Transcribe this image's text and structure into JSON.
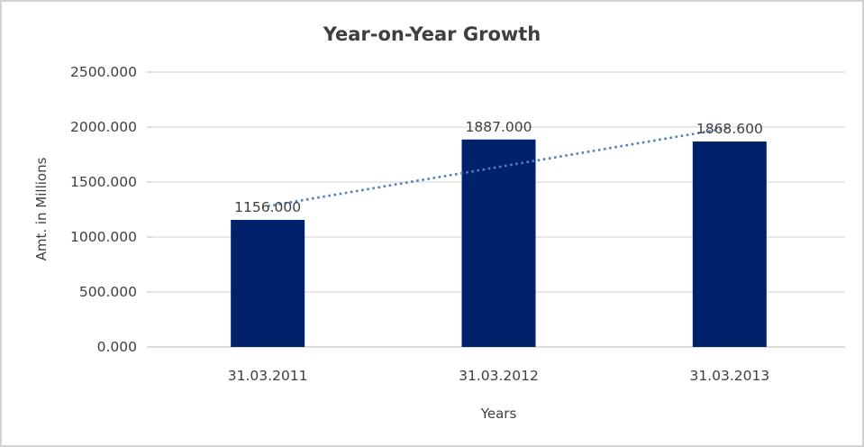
{
  "chart_data": {
    "type": "bar",
    "title": "Year-on-Year Growth",
    "xlabel": "Years",
    "ylabel": "Amt. in Millions",
    "categories": [
      "31.03.2011",
      "31.03.2012",
      "31.03.2013"
    ],
    "values": [
      1156.0,
      1887.0,
      1868.6
    ],
    "data_labels": [
      "1156.000",
      "1887.000",
      "1868.600"
    ],
    "y_tick_values": [
      0,
      500,
      1000,
      1500,
      2000,
      2500
    ],
    "y_tick_labels": [
      "0.000",
      "500.000",
      "1000.000",
      "1500.000",
      "2000.000",
      "2500.000"
    ],
    "ylim": [
      0,
      2500
    ],
    "grid": true,
    "legend": "none",
    "bar_color": "#02216B",
    "gridline_color": "#d9d9d9",
    "axis_line_color": "#c6c6c6",
    "text_color": "#3f3f3f",
    "trendline": {
      "type": "linear",
      "style": "dotted",
      "color": "#4F81BD"
    }
  }
}
